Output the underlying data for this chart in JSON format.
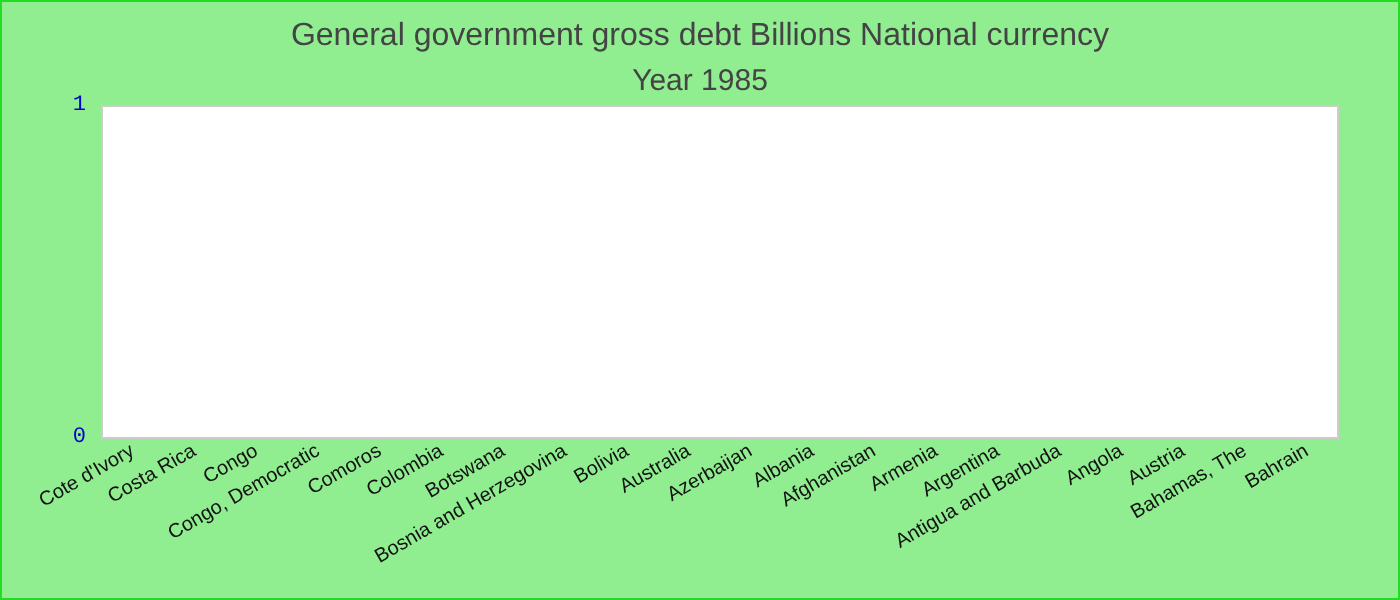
{
  "chart_data": {
    "type": "bar",
    "title": "General government gross debt Billions National currency",
    "subtitle": "Year 1985",
    "categories": [
      "Cote d'Ivory",
      "Costa Rica",
      "Congo",
      "Congo, Democratic",
      "Comoros",
      "Colombia",
      "Botswana",
      "Bosnia and Herzegovina",
      "Bolivia",
      "Australia",
      "Azerbaijan",
      "Albania",
      "Afghanistan",
      "Armenia",
      "Argentina",
      "Antigua and Barbuda",
      "Angola",
      "Austria",
      "Bahamas, The",
      "Bahrain"
    ],
    "values": [
      0,
      0,
      0,
      0,
      0,
      0,
      0,
      0,
      0,
      0,
      0,
      0,
      0,
      0,
      0,
      0,
      0,
      0,
      0,
      0
    ],
    "ylim": [
      0,
      1
    ],
    "yticks": [
      0,
      1
    ],
    "grid": false
  }
}
